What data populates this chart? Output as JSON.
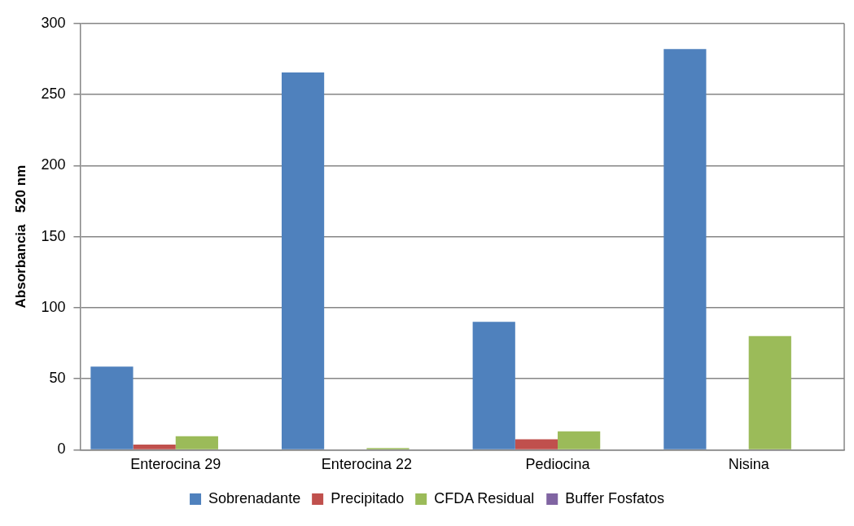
{
  "chart_data": {
    "type": "bar",
    "ylabel": "Absorbancia   520 nm",
    "categories": [
      "Enterocina 29",
      "Enterocina 22",
      "Pediocina",
      "Nisina"
    ],
    "series": [
      {
        "name": "Sobrenadante",
        "color": "#4f81bd",
        "values": [
          58.5,
          265.5,
          90,
          282
        ]
      },
      {
        "name": "Precipitado",
        "color": "#c0504d",
        "values": [
          3.7,
          0,
          7.4,
          0
        ]
      },
      {
        "name": "CFDA Residual",
        "color": "#9bbb59",
        "values": [
          9.6,
          1.3,
          13,
          80
        ]
      },
      {
        "name": "Buffer Fosfatos",
        "color": "#8064a2",
        "values": [
          0,
          0,
          0,
          0
        ]
      }
    ],
    "ylim": [
      0,
      300
    ],
    "yticks": [
      0,
      50,
      100,
      150,
      200,
      250,
      300
    ],
    "grid": "y",
    "legend": "bottom"
  }
}
